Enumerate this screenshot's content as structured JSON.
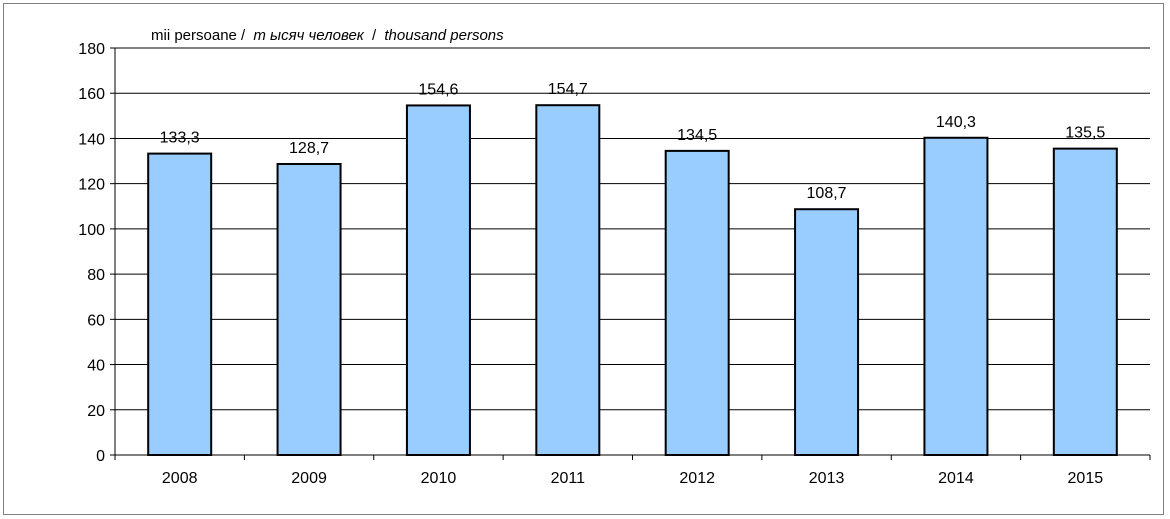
{
  "chart_data": {
    "type": "bar",
    "unit_label": {
      "ro": "mii persoane /",
      "ru": "т ысяч человек",
      "sep": "/",
      "en": "thousand persons"
    },
    "categories": [
      "2008",
      "2009",
      "2010",
      "2011",
      "2012",
      "2013",
      "2014",
      "2015"
    ],
    "values": [
      133.3,
      128.7,
      154.6,
      154.7,
      134.5,
      108.7,
      140.3,
      135.5
    ],
    "value_labels": [
      "133,3",
      "128,7",
      "154,6",
      "154,7",
      "134,5",
      "108,7",
      "140,3",
      "135,5"
    ],
    "ylim": [
      0,
      180
    ],
    "yticks": [
      "0",
      "20",
      "40",
      "60",
      "80",
      "100",
      "120",
      "140",
      "160",
      "180"
    ],
    "grid": true,
    "colors": {
      "bar_fill": "#99ccff",
      "bar_stroke": "#000000",
      "grid": "#000000"
    }
  }
}
